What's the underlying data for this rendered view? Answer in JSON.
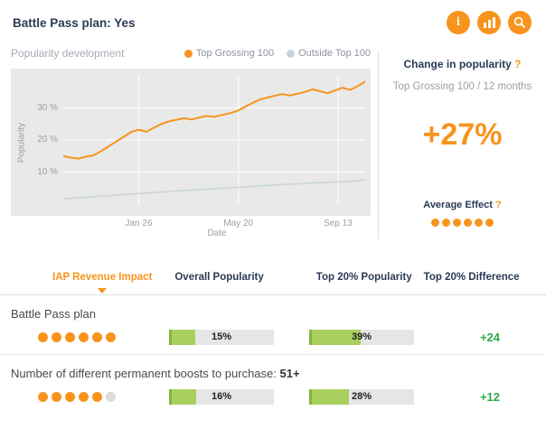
{
  "colors": {
    "accent": "#f7941d",
    "navy": "#2b3a55",
    "positive": "#2faa4a",
    "bar-fill": "#a8d05f",
    "chart-bg": "#e9e9e9"
  },
  "header": {
    "title": "Battle Pass plan: Yes",
    "icons": [
      {
        "name": "info-icon"
      },
      {
        "name": "chart-icon"
      },
      {
        "name": "search-icon"
      }
    ]
  },
  "chart_data": {
    "type": "line",
    "title": "Popularity development",
    "xlabel": "Date",
    "ylabel": "Popularity",
    "ylim": [
      0,
      40
    ],
    "y_ticks": [
      10,
      20,
      30
    ],
    "y_tick_suffix": " %",
    "grid": true,
    "legend_position": "top",
    "x_ticks": [
      {
        "label": "Jan 26",
        "pos": 0.25
      },
      {
        "label": "May 20",
        "pos": 0.58
      },
      {
        "label": "Sep 13",
        "pos": 0.91
      }
    ],
    "series": [
      {
        "name": "Top Grossing 100",
        "color": "#f7941d",
        "values": [
          15,
          14.5,
          14.2,
          14.8,
          15.2,
          16.5,
          18,
          19.5,
          21,
          22.5,
          23.2,
          22.6,
          23.8,
          25,
          25.8,
          26.3,
          26.8,
          26.4,
          27,
          27.5,
          27.2,
          27.8,
          28.3,
          29,
          30.2,
          31.5,
          32.6,
          33.2,
          33.8,
          34.3,
          33.9,
          34.4,
          35,
          35.8,
          35.2,
          34.6,
          35.4,
          36.3,
          35.6,
          36.8,
          38.2
        ]
      },
      {
        "name": "Outside Top 100",
        "color": "#c7d4dd",
        "values": [
          1.6,
          1.8,
          2,
          2.1,
          2.3,
          2.5,
          2.6,
          2.8,
          3,
          3.1,
          3.3,
          3.4,
          3.6,
          3.8,
          3.9,
          4.1,
          4.2,
          4.4,
          4.5,
          4.7,
          4.8,
          5,
          5.1,
          5.2,
          5.4,
          5.5,
          5.7,
          5.8,
          5.9,
          6.1,
          6.2,
          6.3,
          6.4,
          6.6,
          6.7,
          6.8,
          6.9,
          7,
          7.1,
          7.3,
          7.6
        ]
      }
    ]
  },
  "right_panel": {
    "title": "Change in popularity",
    "help": "?",
    "subtitle": "Top Grossing 100 / 12 months",
    "value": "+27%",
    "average_effect": {
      "label": "Average Effect",
      "help": "?",
      "dots_filled": 6,
      "dots_total": 6
    }
  },
  "tabs": [
    {
      "label": "IAP Revenue Impact",
      "active": true
    },
    {
      "label": "Overall Popularity",
      "active": false
    },
    {
      "label": "Top 20% Popularity",
      "active": false
    },
    {
      "label": "Top 20% Difference",
      "active": false
    }
  ],
  "rows": [
    {
      "label": "Battle Pass plan",
      "suffix": "",
      "dots_filled": 6,
      "dots_total": 6,
      "bar1": {
        "label": "15%",
        "value": 15
      },
      "bar2": {
        "label": "39%",
        "value": 39
      },
      "diff": "+24"
    },
    {
      "label": "Number of different permanent boosts to purchase: ",
      "suffix": "51+",
      "dots_filled": 5,
      "dots_total": 6,
      "bar1": {
        "label": "16%",
        "value": 16
      },
      "bar2": {
        "label": "28%",
        "value": 28
      },
      "diff": "+12"
    }
  ]
}
